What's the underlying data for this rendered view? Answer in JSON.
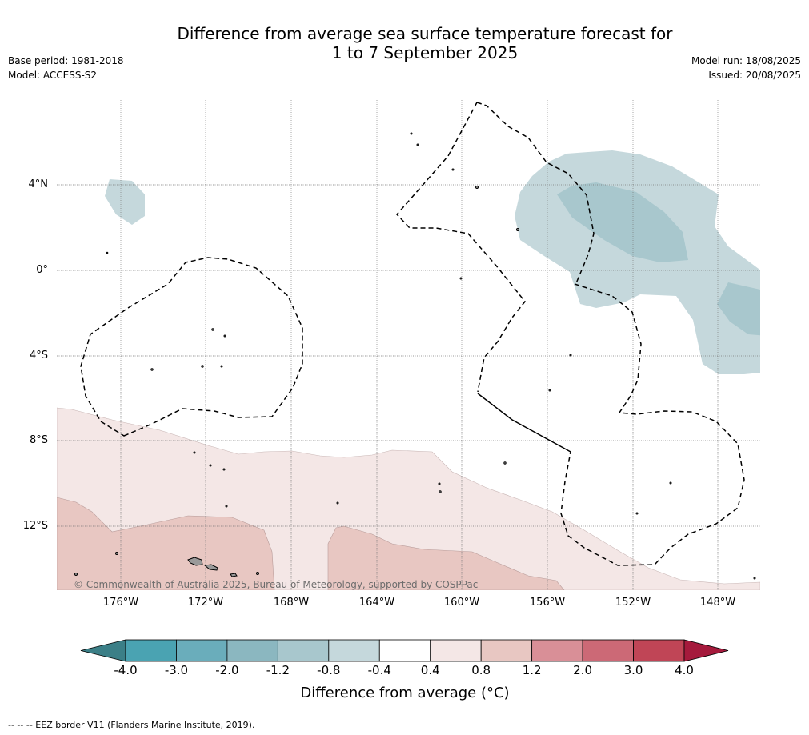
{
  "title_line1": "Difference from average sea surface temperature forecast for",
  "title_line2": "1 to 7 September 2025",
  "base_period": "Base period: 1981-2018",
  "model": "Model: ACCESS-S2",
  "model_run": "Model run: 18/08/2025",
  "issued": "Issued: 20/08/2025",
  "lat_labels": [
    "4°N",
    "0°",
    "4°S",
    "8°S",
    "12°S"
  ],
  "lon_labels": [
    "176°W",
    "172°W",
    "168°W",
    "164°W",
    "160°W",
    "156°W",
    "152°W",
    "148°W"
  ],
  "copyright": "© Commonwealth of Australia 2025, Bureau of Meteorology, supported by COSPPac",
  "colorbar": {
    "ticks": [
      "-4.0",
      "-3.0",
      "-2.0",
      "-1.2",
      "-0.8",
      "-0.4",
      "0.4",
      "0.8",
      "1.2",
      "2.0",
      "3.0",
      "4.0"
    ],
    "colors": [
      "#3b7f87",
      "#4aa3b2",
      "#6aadbb",
      "#8bb7c0",
      "#a8c7cd",
      "#c5d8dc",
      "#ffffff",
      "#f4e7e6",
      "#e8c7c2",
      "#d98f97",
      "#cc6976",
      "#c04556",
      "#a51a3c"
    ],
    "label": "Difference from average (°C)"
  },
  "footnote": "-- -- -- EEZ border V11 (Flanders Marine Institute, 2019)."
}
